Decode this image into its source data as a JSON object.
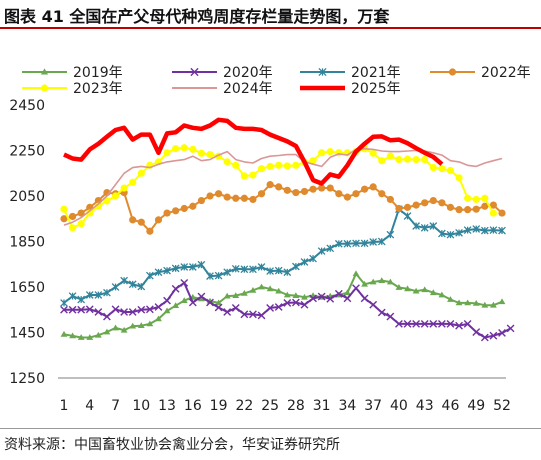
{
  "title": "图表 41  全国在产父母代种鸡周度存栏量走势图，万套",
  "source": "资料来源：中国畜牧业协会禽业分会，华安证券研究所",
  "chart_data": {
    "type": "line",
    "title": "图表 41  全国在产父母代种鸡周度存栏量走势图，万套",
    "xlabel": "",
    "ylabel": "",
    "ylim": [
      1250,
      2450
    ],
    "yticks": [
      1250,
      1450,
      1650,
      1850,
      2050,
      2250,
      2450
    ],
    "xticks": [
      1,
      4,
      7,
      10,
      13,
      16,
      19,
      22,
      25,
      28,
      31,
      34,
      37,
      40,
      43,
      46,
      49,
      52
    ],
    "grid": false,
    "legend": "top",
    "series": [
      {
        "name": "2019年",
        "color": "#6aa84f",
        "marker": "triangle",
        "values": [
          1442,
          1435,
          1428,
          1428,
          1438,
          1452,
          1470,
          1460,
          1478,
          1480,
          1488,
          1510,
          1545,
          1568,
          1590,
          1605,
          1598,
          1588,
          1580,
          1610,
          1612,
          1622,
          1635,
          1650,
          1642,
          1632,
          1615,
          1612,
          1605,
          1612,
          1605,
          1610,
          1615,
          1625,
          1708,
          1662,
          1672,
          1678,
          1672,
          1648,
          1642,
          1632,
          1638,
          1625,
          1615,
          1595,
          1580,
          1580,
          1578,
          1570,
          1570,
          1585
        ]
      },
      {
        "name": "2020年",
        "color": "#7030a0",
        "marker": "x",
        "values": [
          1550,
          1550,
          1550,
          1552,
          1540,
          1520,
          1552,
          1540,
          1540,
          1550,
          1552,
          1562,
          1590,
          1642,
          1668,
          1582,
          1608,
          1582,
          1560,
          1540,
          1558,
          1530,
          1530,
          1525,
          1558,
          1562,
          1580,
          1582,
          1572,
          1600,
          1608,
          1598,
          1620,
          1600,
          1645,
          1600,
          1572,
          1538,
          1520,
          1488,
          1488,
          1488,
          1488,
          1488,
          1488,
          1488,
          1480,
          1488,
          1452,
          1428,
          1436,
          1448,
          1468
        ]
      },
      {
        "name": "2021年",
        "color": "#31849b",
        "marker": "asterisk",
        "values": [
          1580,
          1610,
          1595,
          1615,
          1615,
          1625,
          1650,
          1678,
          1662,
          1652,
          1700,
          1715,
          1722,
          1732,
          1738,
          1738,
          1748,
          1698,
          1700,
          1715,
          1730,
          1728,
          1728,
          1738,
          1720,
          1722,
          1715,
          1740,
          1760,
          1775,
          1808,
          1820,
          1840,
          1840,
          1842,
          1842,
          1848,
          1850,
          1880,
          1992,
          1962,
          1918,
          1910,
          1918,
          1885,
          1880,
          1888,
          1900,
          1905,
          1898,
          1900,
          1898
        ]
      },
      {
        "name": "2022年",
        "color": "#e08a2e",
        "marker": "circle",
        "values": [
          1950,
          1960,
          1975,
          2000,
          2030,
          2065,
          2060,
          2065,
          1945,
          1935,
          1895,
          1945,
          1975,
          1985,
          1995,
          2005,
          2030,
          2050,
          2060,
          2045,
          2040,
          2040,
          2035,
          2060,
          2100,
          2090,
          2075,
          2065,
          2070,
          2080,
          2085,
          2085,
          2060,
          2045,
          2060,
          2080,
          2090,
          2060,
          2035,
          1995,
          2000,
          2010,
          2020,
          2030,
          2020,
          2000,
          1990,
          1990,
          1992,
          2005,
          2010,
          1975
        ]
      },
      {
        "name": "2023年",
        "color": "#ffff00",
        "marker": "circle",
        "values": [
          1992,
          1910,
          1928,
          1975,
          2005,
          2028,
          2050,
          2085,
          2110,
          2150,
          2185,
          2200,
          2240,
          2258,
          2262,
          2255,
          2238,
          2232,
          2225,
          2200,
          2185,
          2138,
          2142,
          2170,
          2180,
          2185,
          2182,
          2185,
          2198,
          2205,
          2240,
          2245,
          2240,
          2240,
          2245,
          2258,
          2238,
          2205,
          2225,
          2210,
          2212,
          2210,
          2210,
          2175,
          2170,
          2162,
          2130,
          2040,
          2035,
          2040,
          1975
        ]
      },
      {
        "name": "2024年",
        "color": "#d99795",
        "marker": "none",
        "values": [
          1922,
          1935,
          1955,
          1985,
          2015,
          2050,
          2100,
          2150,
          2175,
          2180,
          2175,
          2190,
          2200,
          2205,
          2210,
          2225,
          2205,
          2210,
          2230,
          2245,
          2210,
          2200,
          2195,
          2215,
          2225,
          2228,
          2232,
          2232,
          2200,
          2190,
          2180,
          2220,
          2235,
          2230,
          2255,
          2258,
          2255,
          2248,
          2245,
          2245,
          2248,
          2250,
          2248,
          2240,
          2230,
          2205,
          2200,
          2185,
          2180,
          2195,
          2205,
          2215
        ]
      },
      {
        "name": "2025年",
        "color": "#ff0000",
        "marker": "none",
        "values": [
          2232,
          2215,
          2210,
          2255,
          2280,
          2310,
          2340,
          2350,
          2298,
          2320,
          2320,
          2240,
          2325,
          2330,
          2360,
          2350,
          2345,
          2360,
          2385,
          2380,
          2350,
          2345,
          2345,
          2340,
          2320,
          2305,
          2290,
          2270,
          2200,
          2120,
          2105,
          2145,
          2135,
          2185,
          2245,
          2280,
          2310,
          2312,
          2295,
          2298,
          2282,
          2260,
          2240,
          2222,
          2190
        ]
      }
    ]
  }
}
